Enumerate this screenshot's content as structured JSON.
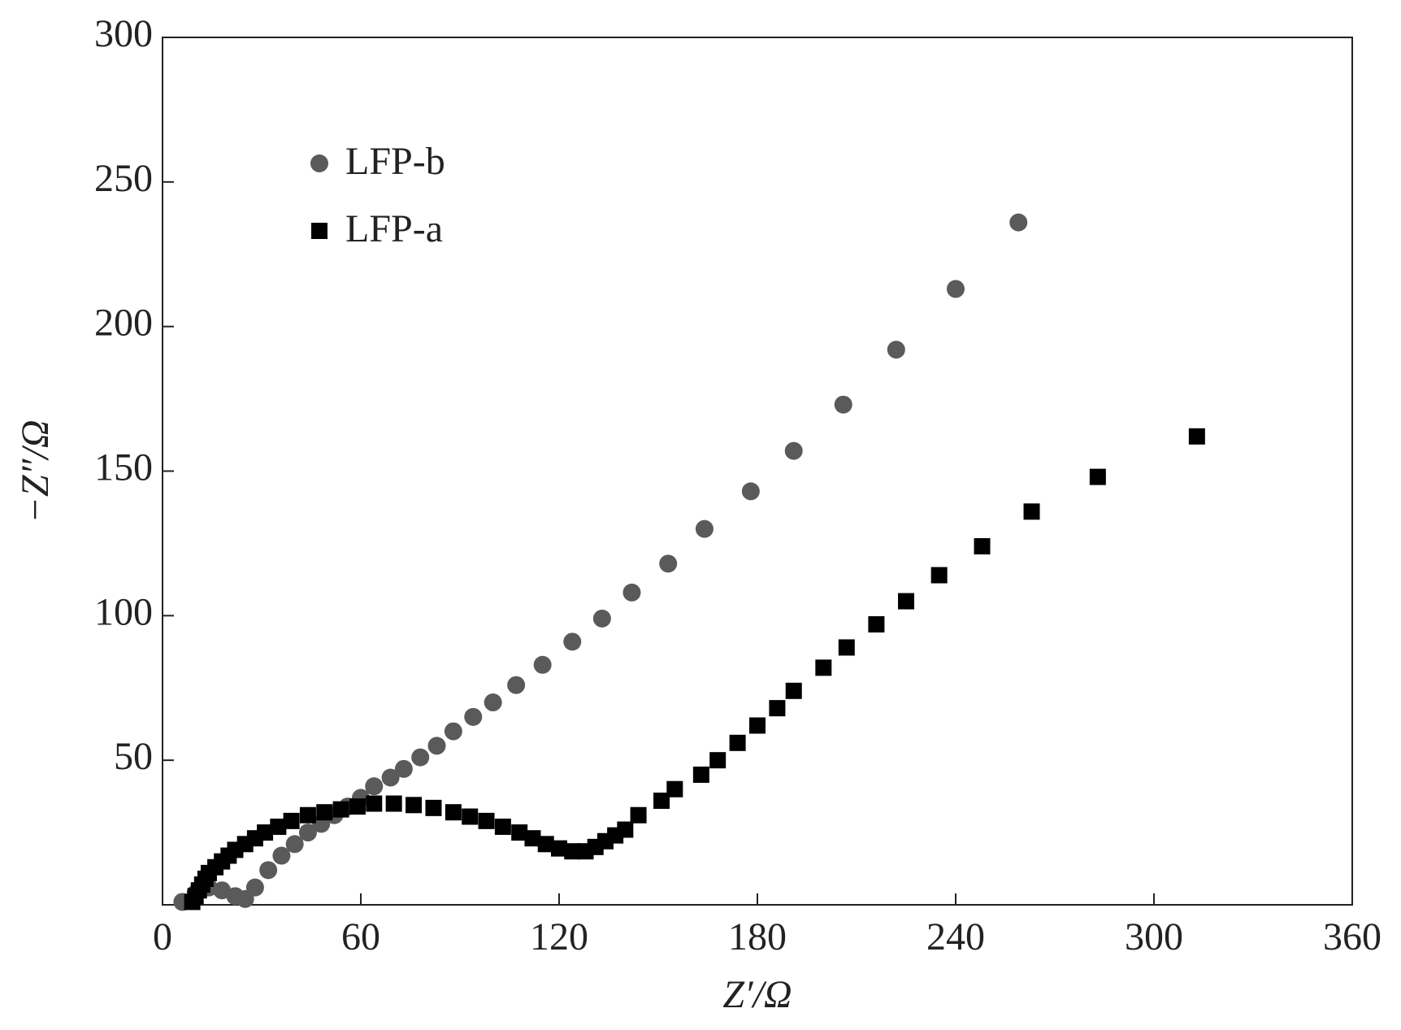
{
  "chart_data": {
    "type": "scatter",
    "x_label": "Z′/Ω",
    "y_label": "−Z″/Ω",
    "xlim": [
      0,
      360
    ],
    "xticks": [
      0,
      60,
      120,
      180,
      240,
      300,
      360
    ],
    "ylim": [
      0,
      300
    ],
    "yticks": [
      50,
      100,
      150,
      200,
      250,
      300
    ],
    "legend": "upper left",
    "series": [
      {
        "name": "LFP-b",
        "color": "#5a5a5a",
        "marker": "circle",
        "x": [
          6,
          10,
          14,
          18,
          22,
          25,
          28,
          32,
          36,
          40,
          44,
          48,
          52,
          56,
          60,
          64,
          69,
          73,
          78,
          83,
          88,
          94,
          100,
          107,
          115,
          124,
          133,
          142,
          153,
          164,
          178,
          191,
          206,
          222,
          240,
          259
        ],
        "values": [
          1,
          4,
          6,
          5,
          3,
          2,
          6,
          12,
          17,
          21,
          25,
          28,
          31,
          34,
          37,
          41,
          44,
          47,
          51,
          55,
          60,
          65,
          70,
          76,
          83,
          91,
          99,
          108,
          118,
          130,
          143,
          157,
          173,
          192,
          213,
          236
        ]
      },
      {
        "name": "LFP-a",
        "color": "#000000",
        "marker": "square",
        "x": [
          9,
          10,
          11,
          12,
          13,
          14,
          16,
          18,
          20,
          22,
          25,
          28,
          31,
          35,
          39,
          44,
          49,
          54,
          59,
          64,
          70,
          76,
          82,
          88,
          93,
          98,
          103,
          108,
          112,
          116,
          120,
          124,
          128,
          131,
          134,
          137,
          140,
          144,
          151,
          155,
          163,
          168,
          174,
          180,
          186,
          191,
          200,
          207,
          216,
          225,
          235,
          248,
          263,
          283,
          313
        ],
        "values": [
          1,
          3,
          5,
          7,
          9,
          11,
          13,
          15,
          17,
          19,
          21,
          23,
          25,
          27,
          29,
          31,
          32,
          33,
          34,
          35,
          35,
          34.5,
          33.5,
          32,
          30.5,
          29,
          27,
          25,
          23,
          21,
          19.5,
          18.5,
          18.5,
          20,
          22,
          24,
          26,
          31,
          36,
          40,
          45,
          50,
          56,
          62,
          68,
          74,
          82,
          89,
          97,
          105,
          114,
          124,
          136,
          148,
          162
        ]
      }
    ]
  }
}
